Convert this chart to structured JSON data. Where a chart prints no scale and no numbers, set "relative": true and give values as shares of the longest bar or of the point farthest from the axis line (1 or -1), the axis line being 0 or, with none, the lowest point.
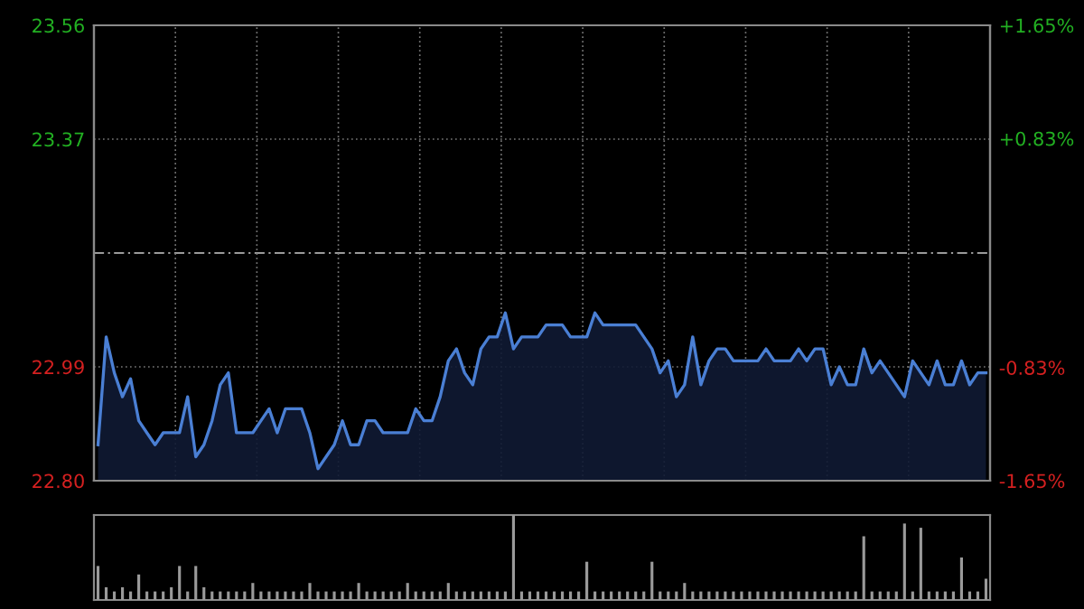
{
  "chart_data": [
    {
      "type": "area",
      "color": "#4a7fd4",
      "categories": [
        null,
        null,
        null,
        null,
        null,
        null,
        null,
        null,
        null,
        null,
        null,
        null,
        null,
        null,
        null,
        null,
        null,
        null,
        null,
        null,
        null,
        null,
        null,
        null,
        null,
        null,
        null,
        null,
        null,
        null,
        null,
        null,
        null,
        null,
        null,
        null,
        null,
        null,
        null,
        null,
        null,
        null,
        null,
        null,
        null,
        null,
        null,
        null,
        null,
        null,
        null,
        null,
        null,
        null,
        null,
        null,
        null,
        null,
        null,
        null,
        null,
        null,
        null,
        null,
        null,
        null,
        null,
        null,
        null,
        null,
        null,
        null,
        null,
        null,
        null,
        null,
        null,
        null,
        null,
        null,
        null,
        null,
        null,
        null,
        null,
        null,
        null,
        null,
        null,
        null,
        null,
        null,
        null,
        null,
        null,
        null,
        null,
        null,
        null,
        null,
        null,
        null,
        null,
        null,
        null,
        null,
        null,
        null,
        null,
        null
      ],
      "values": [
        22.86,
        23.04,
        22.98,
        22.94,
        22.97,
        22.9,
        22.88,
        22.86,
        22.88,
        22.88,
        22.88,
        22.94,
        22.84,
        22.86,
        22.9,
        22.96,
        22.98,
        22.88,
        22.88,
        22.88,
        22.9,
        22.92,
        22.88,
        22.92,
        22.92,
        22.92,
        22.88,
        22.82,
        22.84,
        22.86,
        22.9,
        22.86,
        22.86,
        22.9,
        22.9,
        22.88,
        22.88,
        22.88,
        22.88,
        22.92,
        22.9,
        22.9,
        22.94,
        23.0,
        23.02,
        22.98,
        22.96,
        23.02,
        23.04,
        23.04,
        23.08,
        23.02,
        23.04,
        23.04,
        23.04,
        23.06,
        23.06,
        23.06,
        23.04,
        23.04,
        23.04,
        23.08,
        23.06,
        23.06,
        23.06,
        23.06,
        23.06,
        23.04,
        23.02,
        22.98,
        23.0,
        22.94,
        22.96,
        23.04,
        22.96,
        23.0,
        23.02,
        23.02,
        23.0,
        23.0,
        23.0,
        23.0,
        23.02,
        23.0,
        23.0,
        23.0,
        23.02,
        23.0,
        23.02,
        23.02,
        22.96,
        22.99,
        22.96,
        22.96,
        23.02,
        22.98,
        23.0,
        22.98,
        22.96,
        22.94,
        23.0,
        22.98,
        22.96,
        23.0,
        22.96,
        22.96,
        23.0,
        22.96,
        22.98,
        22.98
      ],
      "ylim": [
        22.8,
        23.56
      ],
      "yticks": [
        {
          "value": 22.8,
          "label": "22.80"
        },
        {
          "value": 22.99,
          "label": "22.99"
        },
        {
          "value": 23.37,
          "label": "23.37"
        },
        {
          "value": 23.56,
          "label": "23.56"
        }
      ],
      "y2lim": [
        -1.65,
        1.65
      ],
      "y2ticks": [
        {
          "value": -1.65,
          "label": "-1.65%"
        },
        {
          "value": -0.83,
          "label": "-0.83%"
        },
        {
          "value": 0.83,
          "label": "+0.83%"
        },
        {
          "value": 1.65,
          "label": "+1.65%"
        }
      ],
      "ref_lines": [
        {
          "axis": "y",
          "value": 23.18,
          "color": "#9a9a9a",
          "line_style": "dashdot"
        }
      ],
      "grid": true
    },
    {
      "type": "bar",
      "relative": true,
      "color": "#9a9a9a",
      "categories": [
        null,
        null,
        null,
        null,
        null,
        null,
        null,
        null,
        null,
        null,
        null,
        null,
        null,
        null,
        null,
        null,
        null,
        null,
        null,
        null,
        null,
        null,
        null,
        null,
        null,
        null,
        null,
        null,
        null,
        null,
        null,
        null,
        null,
        null,
        null,
        null,
        null,
        null,
        null,
        null,
        null,
        null,
        null,
        null,
        null,
        null,
        null,
        null,
        null,
        null,
        null,
        null,
        null,
        null,
        null,
        null,
        null,
        null,
        null,
        null,
        null,
        null,
        null,
        null,
        null,
        null,
        null,
        null,
        null,
        null,
        null,
        null,
        null,
        null,
        null,
        null,
        null,
        null,
        null,
        null,
        null,
        null,
        null,
        null,
        null,
        null,
        null,
        null,
        null,
        null,
        null,
        null,
        null,
        null,
        null,
        null,
        null,
        null,
        null,
        null,
        null,
        null,
        null,
        null,
        null,
        null,
        null,
        null,
        null,
        null
      ],
      "values": [
        0.4,
        0.15,
        0.1,
        0.15,
        0.1,
        0.3,
        0.1,
        0.1,
        0.1,
        0.15,
        0.4,
        0.1,
        0.4,
        0.15,
        0.1,
        0.1,
        0.1,
        0.1,
        0.1,
        0.2,
        0.1,
        0.1,
        0.1,
        0.1,
        0.1,
        0.1,
        0.2,
        0.1,
        0.1,
        0.1,
        0.1,
        0.1,
        0.2,
        0.1,
        0.1,
        0.1,
        0.1,
        0.1,
        0.2,
        0.1,
        0.1,
        0.1,
        0.1,
        0.2,
        0.1,
        0.1,
        0.1,
        0.1,
        0.1,
        0.1,
        0.1,
        1.0,
        0.1,
        0.1,
        0.1,
        0.1,
        0.1,
        0.1,
        0.1,
        0.1,
        0.45,
        0.1,
        0.1,
        0.1,
        0.1,
        0.1,
        0.1,
        0.1,
        0.45,
        0.1,
        0.1,
        0.1,
        0.2,
        0.1,
        0.1,
        0.1,
        0.1,
        0.1,
        0.1,
        0.1,
        0.1,
        0.1,
        0.1,
        0.1,
        0.1,
        0.1,
        0.1,
        0.1,
        0.1,
        0.1,
        0.1,
        0.1,
        0.1,
        0.1,
        0.75,
        0.1,
        0.1,
        0.1,
        0.1,
        0.9,
        0.1,
        0.85,
        0.1,
        0.1,
        0.1,
        0.1,
        0.5,
        0.1,
        0.1,
        0.25
      ]
    }
  ]
}
